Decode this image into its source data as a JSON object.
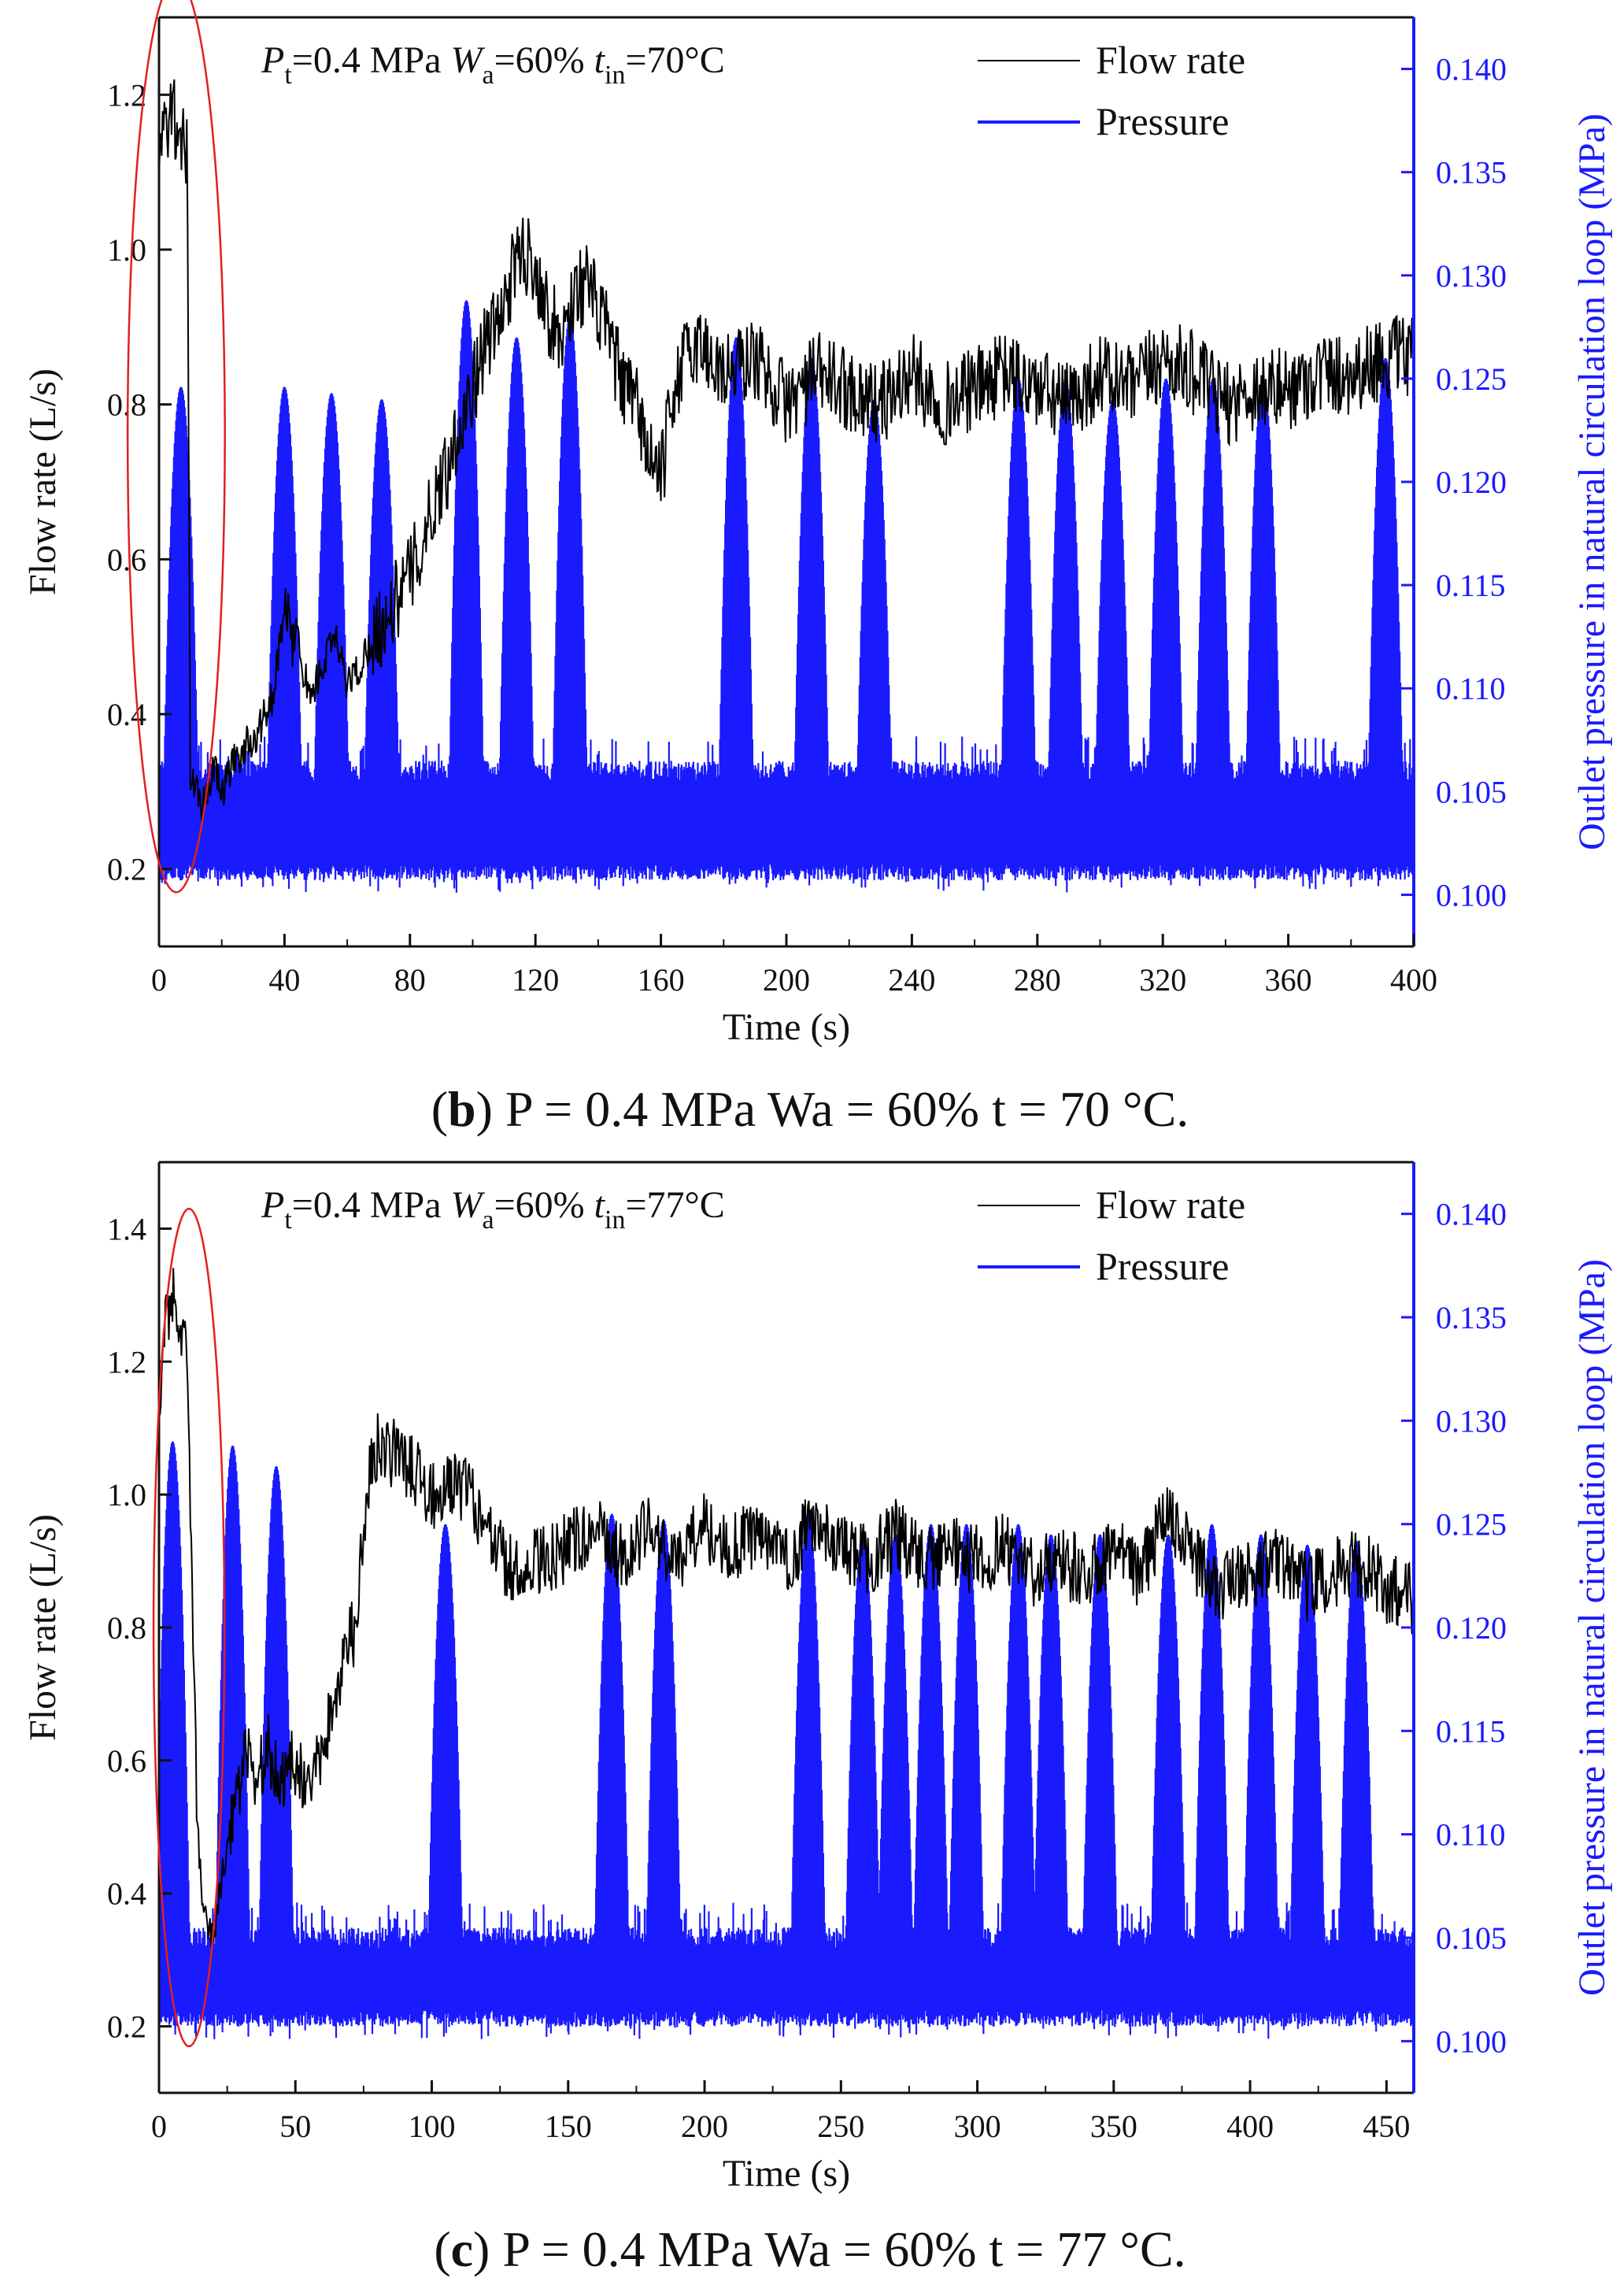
{
  "chart_data": [
    {
      "type": "line",
      "panel": "b",
      "title": "",
      "annotation": {
        "p": "P",
        "p_sub": "t",
        "p_val": "=0.4 MPa ",
        "w": "W",
        "w_sub": "a",
        "w_val": "=60% ",
        "t": "t",
        "t_sub": "in",
        "t_val": "=70°C"
      },
      "xlabel": "Time (s)",
      "ylabel": "Flow rate (L/s)",
      "ylabel_right": "Outlet pressure in natural circulation loop (MPa)",
      "xlim": [
        0,
        400
      ],
      "ylim": [
        0.1,
        1.3
      ],
      "ylim_right": [
        0.0975,
        0.1425
      ],
      "x_ticks": [
        "0",
        "40",
        "80",
        "120",
        "160",
        "200",
        "240",
        "280",
        "320",
        "360",
        "400"
      ],
      "y_ticks": [
        "0.2",
        "0.4",
        "0.6",
        "0.8",
        "1.0",
        "1.2"
      ],
      "y_ticks_right": [
        "0.100",
        "0.105",
        "0.110",
        "0.115",
        "0.120",
        "0.125",
        "0.130",
        "0.135",
        "0.140"
      ],
      "legend": [
        {
          "label": "Flow rate",
          "color": "#000000"
        },
        {
          "label": "Pressure",
          "color": "#1a1aff"
        }
      ],
      "series": [
        {
          "name": "Flow rate",
          "axis": "left",
          "color": "#000000",
          "x": [
            0,
            2,
            4,
            6,
            8,
            9,
            10,
            12,
            14,
            16,
            18,
            20,
            24,
            28,
            32,
            36,
            38,
            40,
            44,
            48,
            52,
            56,
            60,
            64,
            68,
            72,
            76,
            80,
            84,
            88,
            92,
            96,
            100,
            104,
            108,
            112,
            116,
            120,
            124,
            128,
            132,
            136,
            140,
            144,
            148,
            152,
            156,
            160,
            164,
            168,
            172,
            176,
            180,
            190,
            200,
            210,
            220,
            230,
            240,
            250,
            260,
            270,
            280,
            290,
            300,
            310,
            320,
            330,
            340,
            350,
            360,
            370,
            380,
            390,
            400
          ],
          "y": [
            1.12,
            1.15,
            1.18,
            1.16,
            1.14,
            1.12,
            0.32,
            0.3,
            0.28,
            0.31,
            0.33,
            0.3,
            0.34,
            0.36,
            0.38,
            0.42,
            0.48,
            0.52,
            0.5,
            0.42,
            0.46,
            0.5,
            0.44,
            0.46,
            0.5,
            0.52,
            0.55,
            0.58,
            0.62,
            0.68,
            0.72,
            0.78,
            0.82,
            0.88,
            0.9,
            0.96,
            1.0,
            0.98,
            0.92,
            0.88,
            0.94,
            0.96,
            0.92,
            0.88,
            0.82,
            0.8,
            0.74,
            0.7,
            0.82,
            0.86,
            0.88,
            0.86,
            0.84,
            0.86,
            0.8,
            0.84,
            0.82,
            0.8,
            0.84,
            0.8,
            0.82,
            0.84,
            0.82,
            0.8,
            0.84,
            0.82,
            0.86,
            0.84,
            0.8,
            0.82,
            0.82,
            0.84,
            0.84,
            0.86,
            0.86
          ]
        },
        {
          "name": "Pressure",
          "axis": "right",
          "color": "#1a1aff",
          "baseline": [
            0.1015,
            0.1055
          ],
          "peaks": [
            {
              "t": 7,
              "p": 0.1246
            },
            {
              "t": 40,
              "p": 0.1246
            },
            {
              "t": 55,
              "p": 0.1243
            },
            {
              "t": 71,
              "p": 0.124
            },
            {
              "t": 98,
              "p": 0.1288
            },
            {
              "t": 114,
              "p": 0.127
            },
            {
              "t": 131,
              "p": 0.128
            },
            {
              "t": 184,
              "p": 0.127
            },
            {
              "t": 208,
              "p": 0.126
            },
            {
              "t": 228,
              "p": 0.124
            },
            {
              "t": 274,
              "p": 0.125
            },
            {
              "t": 289,
              "p": 0.125
            },
            {
              "t": 304,
              "p": 0.124
            },
            {
              "t": 321,
              "p": 0.125
            },
            {
              "t": 336,
              "p": 0.125
            },
            {
              "t": 352,
              "p": 0.125
            },
            {
              "t": 391,
              "p": 0.126
            }
          ]
        }
      ],
      "highlight_ellipse": {
        "x_range": [
          -10,
          21
        ],
        "y_range": [
          0.17,
          1.35
        ],
        "color": "#e02020"
      }
    },
    {
      "type": "line",
      "panel": "c",
      "title": "",
      "annotation": {
        "p": "P",
        "p_sub": "t",
        "p_val": "=0.4 MPa ",
        "w": "W",
        "w_sub": "a",
        "w_val": "=60% ",
        "t": "t",
        "t_sub": "in",
        "t_val": "=77°C"
      },
      "xlabel": "Time (s)",
      "ylabel": "Flow rate (L/s)",
      "ylabel_right": "Outlet pressure in natural circulation loop (MPa)",
      "xlim": [
        0,
        460
      ],
      "ylim": [
        0.1,
        1.5
      ],
      "ylim_right": [
        0.0975,
        0.1425
      ],
      "x_ticks": [
        "0",
        "50",
        "100",
        "150",
        "200",
        "250",
        "300",
        "350",
        "400",
        "450"
      ],
      "y_ticks": [
        "0.2",
        "0.4",
        "0.6",
        "0.8",
        "1.0",
        "1.2",
        "1.4"
      ],
      "y_ticks_right": [
        "0.100",
        "0.105",
        "0.110",
        "0.115",
        "0.120",
        "0.125",
        "0.130",
        "0.135",
        "0.140"
      ],
      "legend": [
        {
          "label": "Flow rate",
          "color": "#000000"
        },
        {
          "label": "Pressure",
          "color": "#1a1aff"
        }
      ],
      "series": [
        {
          "name": "Flow rate",
          "axis": "left",
          "color": "#000000",
          "x": [
            0,
            2,
            4,
            6,
            8,
            10,
            12,
            14,
            16,
            18,
            20,
            24,
            28,
            32,
            36,
            40,
            44,
            48,
            52,
            56,
            60,
            64,
            68,
            72,
            76,
            80,
            90,
            100,
            110,
            120,
            130,
            140,
            150,
            160,
            170,
            180,
            190,
            200,
            210,
            220,
            230,
            240,
            250,
            260,
            270,
            280,
            290,
            300,
            310,
            320,
            330,
            340,
            350,
            360,
            370,
            380,
            390,
            400,
            410,
            420,
            430,
            440,
            450,
            460
          ],
          "y": [
            1.15,
            1.25,
            1.28,
            1.3,
            1.25,
            1.2,
            0.9,
            0.5,
            0.38,
            0.35,
            0.34,
            0.45,
            0.55,
            0.6,
            0.58,
            0.62,
            0.56,
            0.6,
            0.58,
            0.56,
            0.62,
            0.7,
            0.76,
            0.8,
            1.0,
            1.08,
            1.05,
            1.0,
            1.02,
            0.95,
            0.88,
            0.9,
            0.92,
            0.95,
            0.9,
            0.96,
            0.9,
            0.95,
            0.92,
            0.95,
            0.9,
            0.96,
            0.92,
            0.9,
            0.94,
            0.9,
            0.92,
            0.9,
            0.92,
            0.88,
            0.9,
            0.88,
            0.92,
            0.88,
            0.98,
            0.9,
            0.86,
            0.88,
            0.9,
            0.86,
            0.88,
            0.9,
            0.86,
            0.84
          ]
        },
        {
          "name": "Pressure",
          "axis": "right",
          "color": "#1a1aff",
          "baseline": [
            0.1015,
            0.1045
          ],
          "peaks": [
            {
              "t": 5,
              "p": 0.129
            },
            {
              "t": 27,
              "p": 0.1288
            },
            {
              "t": 43,
              "p": 0.1278
            },
            {
              "t": 105,
              "p": 0.125
            },
            {
              "t": 166,
              "p": 0.1255
            },
            {
              "t": 185,
              "p": 0.1252
            },
            {
              "t": 238,
              "p": 0.1255
            },
            {
              "t": 258,
              "p": 0.1245
            },
            {
              "t": 270,
              "p": 0.1245
            },
            {
              "t": 283,
              "p": 0.125
            },
            {
              "t": 296,
              "p": 0.125
            },
            {
              "t": 315,
              "p": 0.125
            },
            {
              "t": 327,
              "p": 0.1245
            },
            {
              "t": 345,
              "p": 0.1245
            },
            {
              "t": 370,
              "p": 0.1245
            },
            {
              "t": 386,
              "p": 0.125
            },
            {
              "t": 404,
              "p": 0.1245
            },
            {
              "t": 421,
              "p": 0.124
            },
            {
              "t": 439,
              "p": 0.1242
            }
          ]
        }
      ],
      "highlight_ellipse": {
        "x_range": [
          -2,
          24
        ],
        "y_range": [
          0.17,
          1.43
        ],
        "color": "#e02020"
      }
    }
  ],
  "captions": [
    {
      "label": "b",
      "text": " P = 0.4 MPa Wa = 60% t = 70 °C."
    },
    {
      "label": "c",
      "text": " P = 0.4 MPa Wa = 60% t = 77 °C."
    }
  ]
}
